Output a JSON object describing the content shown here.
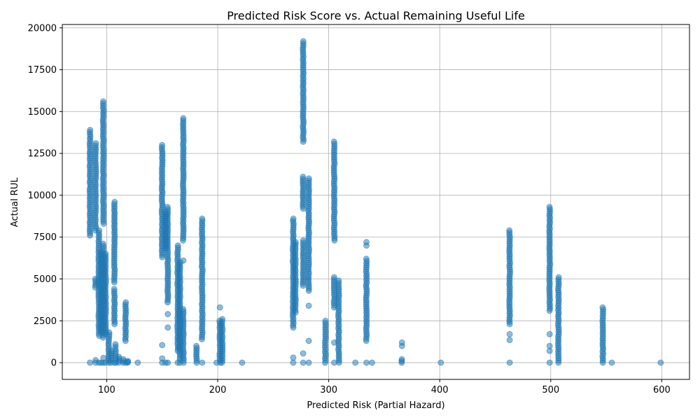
{
  "chart_data": {
    "type": "scatter",
    "title": "Predicted Risk Score vs. Actual Remaining Useful Life",
    "xlabel": "Predicted Risk (Partial Hazard)",
    "ylabel": "Actual RUL",
    "xlim": [
      60,
      625
    ],
    "ylim": [
      -1000,
      20200
    ],
    "xticks": [
      100,
      200,
      300,
      400,
      500,
      600
    ],
    "yticks": [
      0,
      2500,
      5000,
      7500,
      10000,
      12500,
      15000,
      17500,
      20000
    ],
    "grid": true,
    "marker_color": "#1f77b4",
    "columns": [
      {
        "x": 85,
        "ranges": [
          [
            7600,
            13900
          ]
        ],
        "singles": [
          0
        ]
      },
      {
        "x": 90,
        "ranges": [
          [
            7900,
            13100
          ],
          [
            4500,
            5000
          ]
        ],
        "singles": [
          0,
          150
        ]
      },
      {
        "x": 93,
        "ranges": [
          [
            1600,
            7900
          ]
        ],
        "singles": [
          0
        ]
      },
      {
        "x": 95,
        "ranges": [
          [
            1800,
            6600
          ]
        ],
        "singles": [
          0
        ]
      },
      {
        "x": 97,
        "ranges": [
          [
            8300,
            15600
          ],
          [
            1500,
            7100
          ]
        ],
        "singles": [
          0,
          280
        ]
      },
      {
        "x": 99,
        "ranges": [
          [
            1700,
            6500
          ]
        ],
        "singles": [
          0
        ]
      },
      {
        "x": 102,
        "ranges": [
          [
            0,
            1800
          ]
        ],
        "singles": []
      },
      {
        "x": 104,
        "ranges": [
          [
            0,
            700
          ]
        ],
        "singles": []
      },
      {
        "x": 107,
        "ranges": [
          [
            2300,
            4400
          ],
          [
            4800,
            9600
          ]
        ],
        "singles": [
          0
        ]
      },
      {
        "x": 108,
        "ranges": [
          [
            0,
            1100
          ]
        ],
        "singles": []
      },
      {
        "x": 111,
        "ranges": [
          [
            0,
            350
          ]
        ],
        "singles": []
      },
      {
        "x": 115,
        "ranges": [
          [
            0,
            200
          ]
        ],
        "singles": []
      },
      {
        "x": 117,
        "ranges": [
          [
            1300,
            3600
          ]
        ],
        "singles": [
          0
        ]
      },
      {
        "x": 119,
        "ranges": [
          [
            0,
            100
          ]
        ],
        "singles": []
      },
      {
        "x": 128,
        "ranges": [
          [
            0,
            0
          ]
        ],
        "singles": []
      },
      {
        "x": 150,
        "ranges": [
          [
            6300,
            13000
          ]
        ],
        "singles": [
          1050,
          250,
          0
        ]
      },
      {
        "x": 153,
        "ranges": [
          [
            6800,
            9000
          ]
        ],
        "singles": [
          0
        ]
      },
      {
        "x": 155,
        "ranges": [
          [
            3600,
            9300
          ]
        ],
        "singles": [
          2100,
          2900,
          0
        ]
      },
      {
        "x": 164,
        "ranges": [
          [
            700,
            7000
          ]
        ],
        "singles": [
          0
        ]
      },
      {
        "x": 166,
        "ranges": [
          [
            200,
            6000
          ]
        ],
        "singles": [
          0
        ]
      },
      {
        "x": 169,
        "ranges": [
          [
            7300,
            14600
          ],
          [
            0,
            3200
          ]
        ],
        "singles": [
          6100
        ]
      },
      {
        "x": 181,
        "ranges": [
          [
            0,
            1000
          ]
        ],
        "singles": []
      },
      {
        "x": 186,
        "ranges": [
          [
            1400,
            8600
          ]
        ],
        "singles": [
          0
        ]
      },
      {
        "x": 199,
        "ranges": [
          [
            0,
            0
          ]
        ],
        "singles": []
      },
      {
        "x": 202,
        "ranges": [
          [
            0,
            2500
          ]
        ],
        "singles": [
          3300
        ]
      },
      {
        "x": 204,
        "ranges": [
          [
            0,
            2600
          ]
        ],
        "singles": []
      },
      {
        "x": 222,
        "ranges": [
          [
            0,
            0
          ]
        ],
        "singles": []
      },
      {
        "x": 268,
        "ranges": [
          [
            2100,
            8600
          ]
        ],
        "singles": [
          300,
          0
        ]
      },
      {
        "x": 270,
        "ranges": [
          [
            3000,
            7200
          ]
        ],
        "singles": []
      },
      {
        "x": 277,
        "ranges": [
          [
            13200,
            19200
          ],
          [
            9200,
            11100
          ],
          [
            4600,
            7300
          ]
        ],
        "singles": [
          550,
          0
        ]
      },
      {
        "x": 282,
        "ranges": [
          [
            4300,
            11000
          ]
        ],
        "singles": [
          3400,
          1300,
          0
        ]
      },
      {
        "x": 297,
        "ranges": [
          [
            0,
            2500
          ]
        ],
        "singles": []
      },
      {
        "x": 305,
        "ranges": [
          [
            7300,
            13200
          ],
          [
            3300,
            5100
          ]
        ],
        "singles": [
          1200,
          0
        ]
      },
      {
        "x": 309,
        "ranges": [
          [
            0,
            4900
          ]
        ],
        "singles": []
      },
      {
        "x": 324,
        "ranges": [
          [
            0,
            0
          ]
        ],
        "singles": []
      },
      {
        "x": 334,
        "ranges": [
          [
            1300,
            6200
          ]
        ],
        "singles": [
          7000,
          7200,
          0
        ]
      },
      {
        "x": 339,
        "ranges": [
          [
            0,
            0
          ]
        ],
        "singles": []
      },
      {
        "x": 366,
        "ranges": [
          [
            0,
            200
          ]
        ],
        "singles": [
          1000,
          1200
        ]
      },
      {
        "x": 401,
        "ranges": [
          [
            0,
            0
          ]
        ],
        "singles": []
      },
      {
        "x": 463,
        "ranges": [
          [
            2300,
            7900
          ]
        ],
        "singles": [
          1350,
          1700,
          0
        ]
      },
      {
        "x": 499,
        "ranges": [
          [
            3100,
            9300
          ]
        ],
        "singles": [
          700,
          1000,
          1700,
          0
        ]
      },
      {
        "x": 507,
        "ranges": [
          [
            0,
            5100
          ]
        ],
        "singles": []
      },
      {
        "x": 547,
        "ranges": [
          [
            0,
            3300
          ]
        ],
        "singles": []
      },
      {
        "x": 555,
        "ranges": [
          [
            0,
            0
          ]
        ],
        "singles": []
      },
      {
        "x": 599,
        "ranges": [
          [
            0,
            0
          ]
        ],
        "singles": []
      }
    ]
  }
}
